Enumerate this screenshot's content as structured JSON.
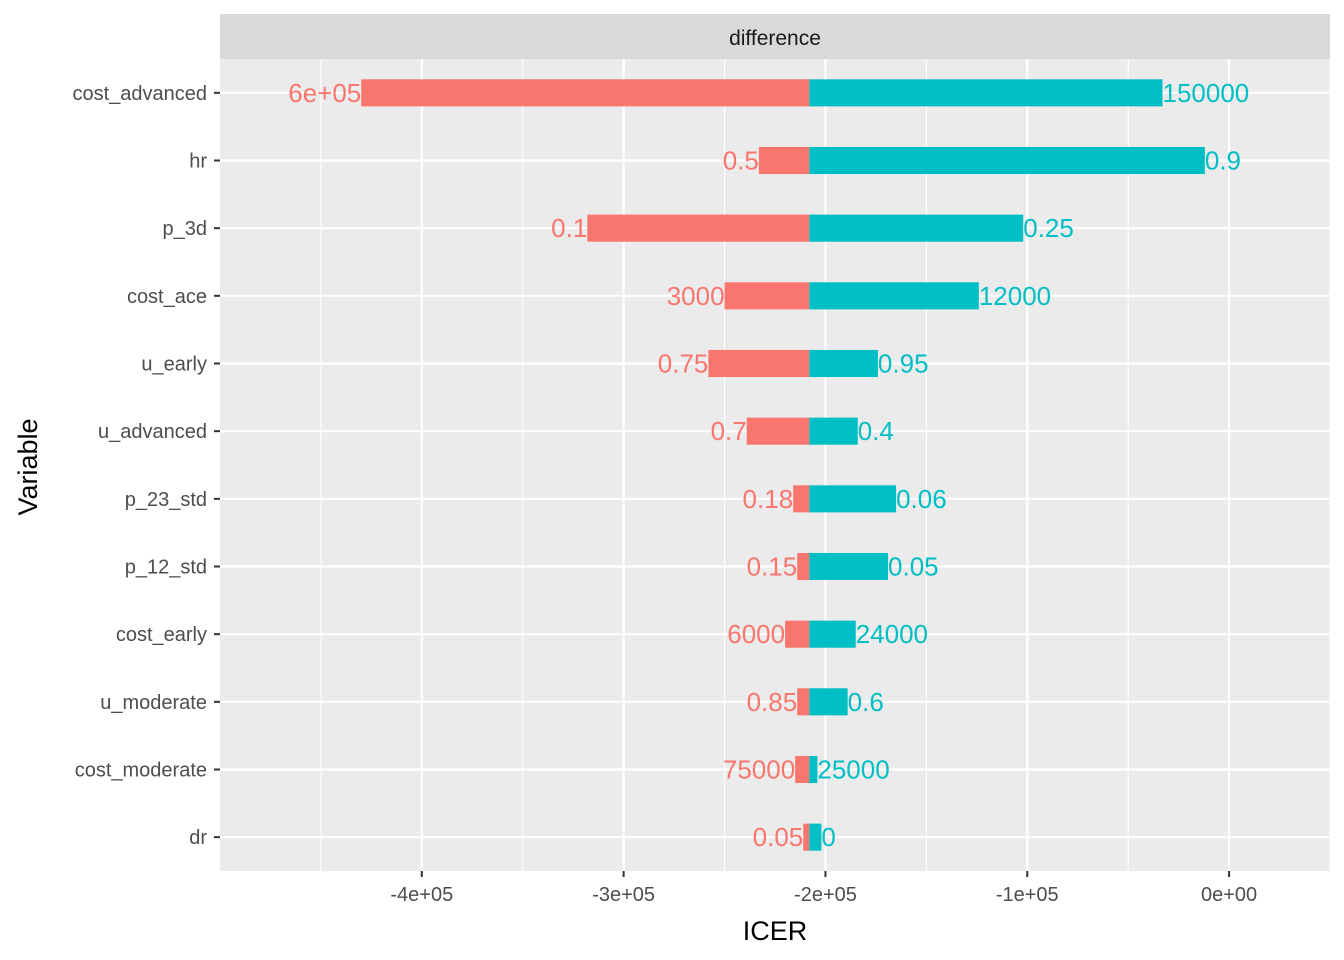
{
  "chart_data": {
    "type": "bar",
    "orientation": "horizontal",
    "facet_label": "difference",
    "xlabel": "ICER",
    "ylabel": "Variable",
    "xlim": [
      -500000,
      50000
    ],
    "x_ticks": [
      -400000,
      -300000,
      -200000,
      -100000,
      0
    ],
    "x_tick_labels": [
      "-4e+05",
      "-3e+05",
      "-2e+05",
      "-1e+05",
      "0e+00"
    ],
    "grid": true,
    "base_value": -208000,
    "colors": {
      "low": "#F8766D",
      "high": "#00BFC4"
    },
    "categories": [
      "cost_advanced",
      "hr",
      "p_3d",
      "cost_ace",
      "u_early",
      "u_advanced",
      "p_23_std",
      "p_12_std",
      "cost_early",
      "u_moderate",
      "cost_moderate",
      "dr"
    ],
    "series": [
      {
        "values": [
          -430000,
          -233000,
          -318000,
          -250000,
          -258000,
          -239000,
          -216000,
          -214000,
          -220000,
          -214000,
          -215000,
          -211000
        ],
        "labels": [
          "6e+05",
          "0.5",
          "0.1",
          "3000",
          "0.75",
          "0.7",
          "0.18",
          "0.15",
          "6000",
          "0.85",
          "75000",
          "0.05"
        ]
      },
      {
        "values": [
          -33000,
          -12000,
          -102000,
          -124000,
          -174000,
          -184000,
          -165000,
          -169000,
          -185000,
          -189000,
          -204000,
          -202000
        ],
        "labels": [
          "150000",
          "0.9",
          "0.25",
          "12000",
          "0.95",
          "0.4",
          "0.06",
          "0.05",
          "24000",
          "0.6",
          "25000",
          "0"
        ]
      }
    ]
  }
}
